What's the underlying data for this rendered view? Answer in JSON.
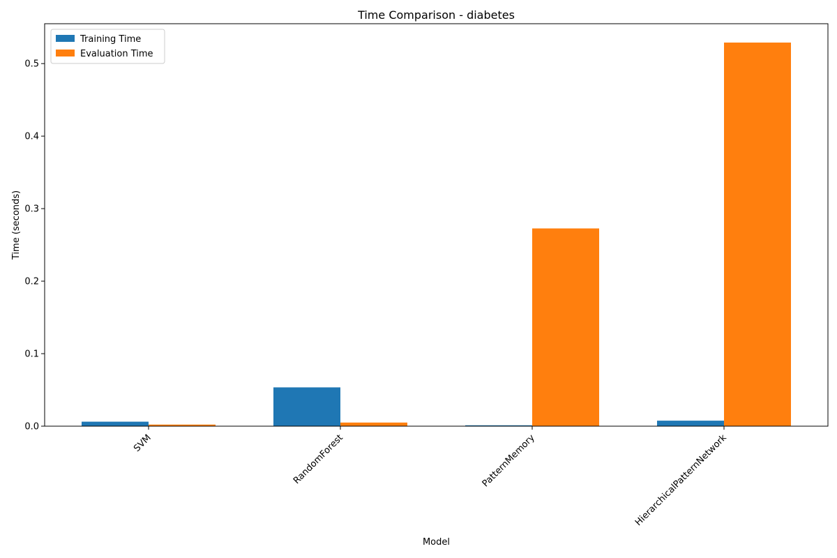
{
  "chart_data": {
    "type": "bar",
    "title": "Time Comparison - diabetes",
    "xlabel": "Model",
    "ylabel": "Time (seconds)",
    "categories": [
      "SVM",
      "RandomForest",
      "PatternMemory",
      "HierarchicalPatternNetwork"
    ],
    "series": [
      {
        "name": "Training Time",
        "color": "#1f77b4",
        "values": [
          0.0062,
          0.0535,
          0.0012,
          0.0076
        ]
      },
      {
        "name": "Evaluation Time",
        "color": "#ff7f0e",
        "values": [
          0.0022,
          0.005,
          0.2727,
          0.529
        ]
      }
    ],
    "ylim": [
      0,
      0.555
    ],
    "yticks": [
      0.0,
      0.1,
      0.2,
      0.3,
      0.4,
      0.5
    ],
    "ytick_labels": [
      "0.0",
      "0.1",
      "0.2",
      "0.3",
      "0.4",
      "0.5"
    ],
    "grid": false,
    "legend_position": "top-left",
    "xtick_rotation": "45"
  }
}
